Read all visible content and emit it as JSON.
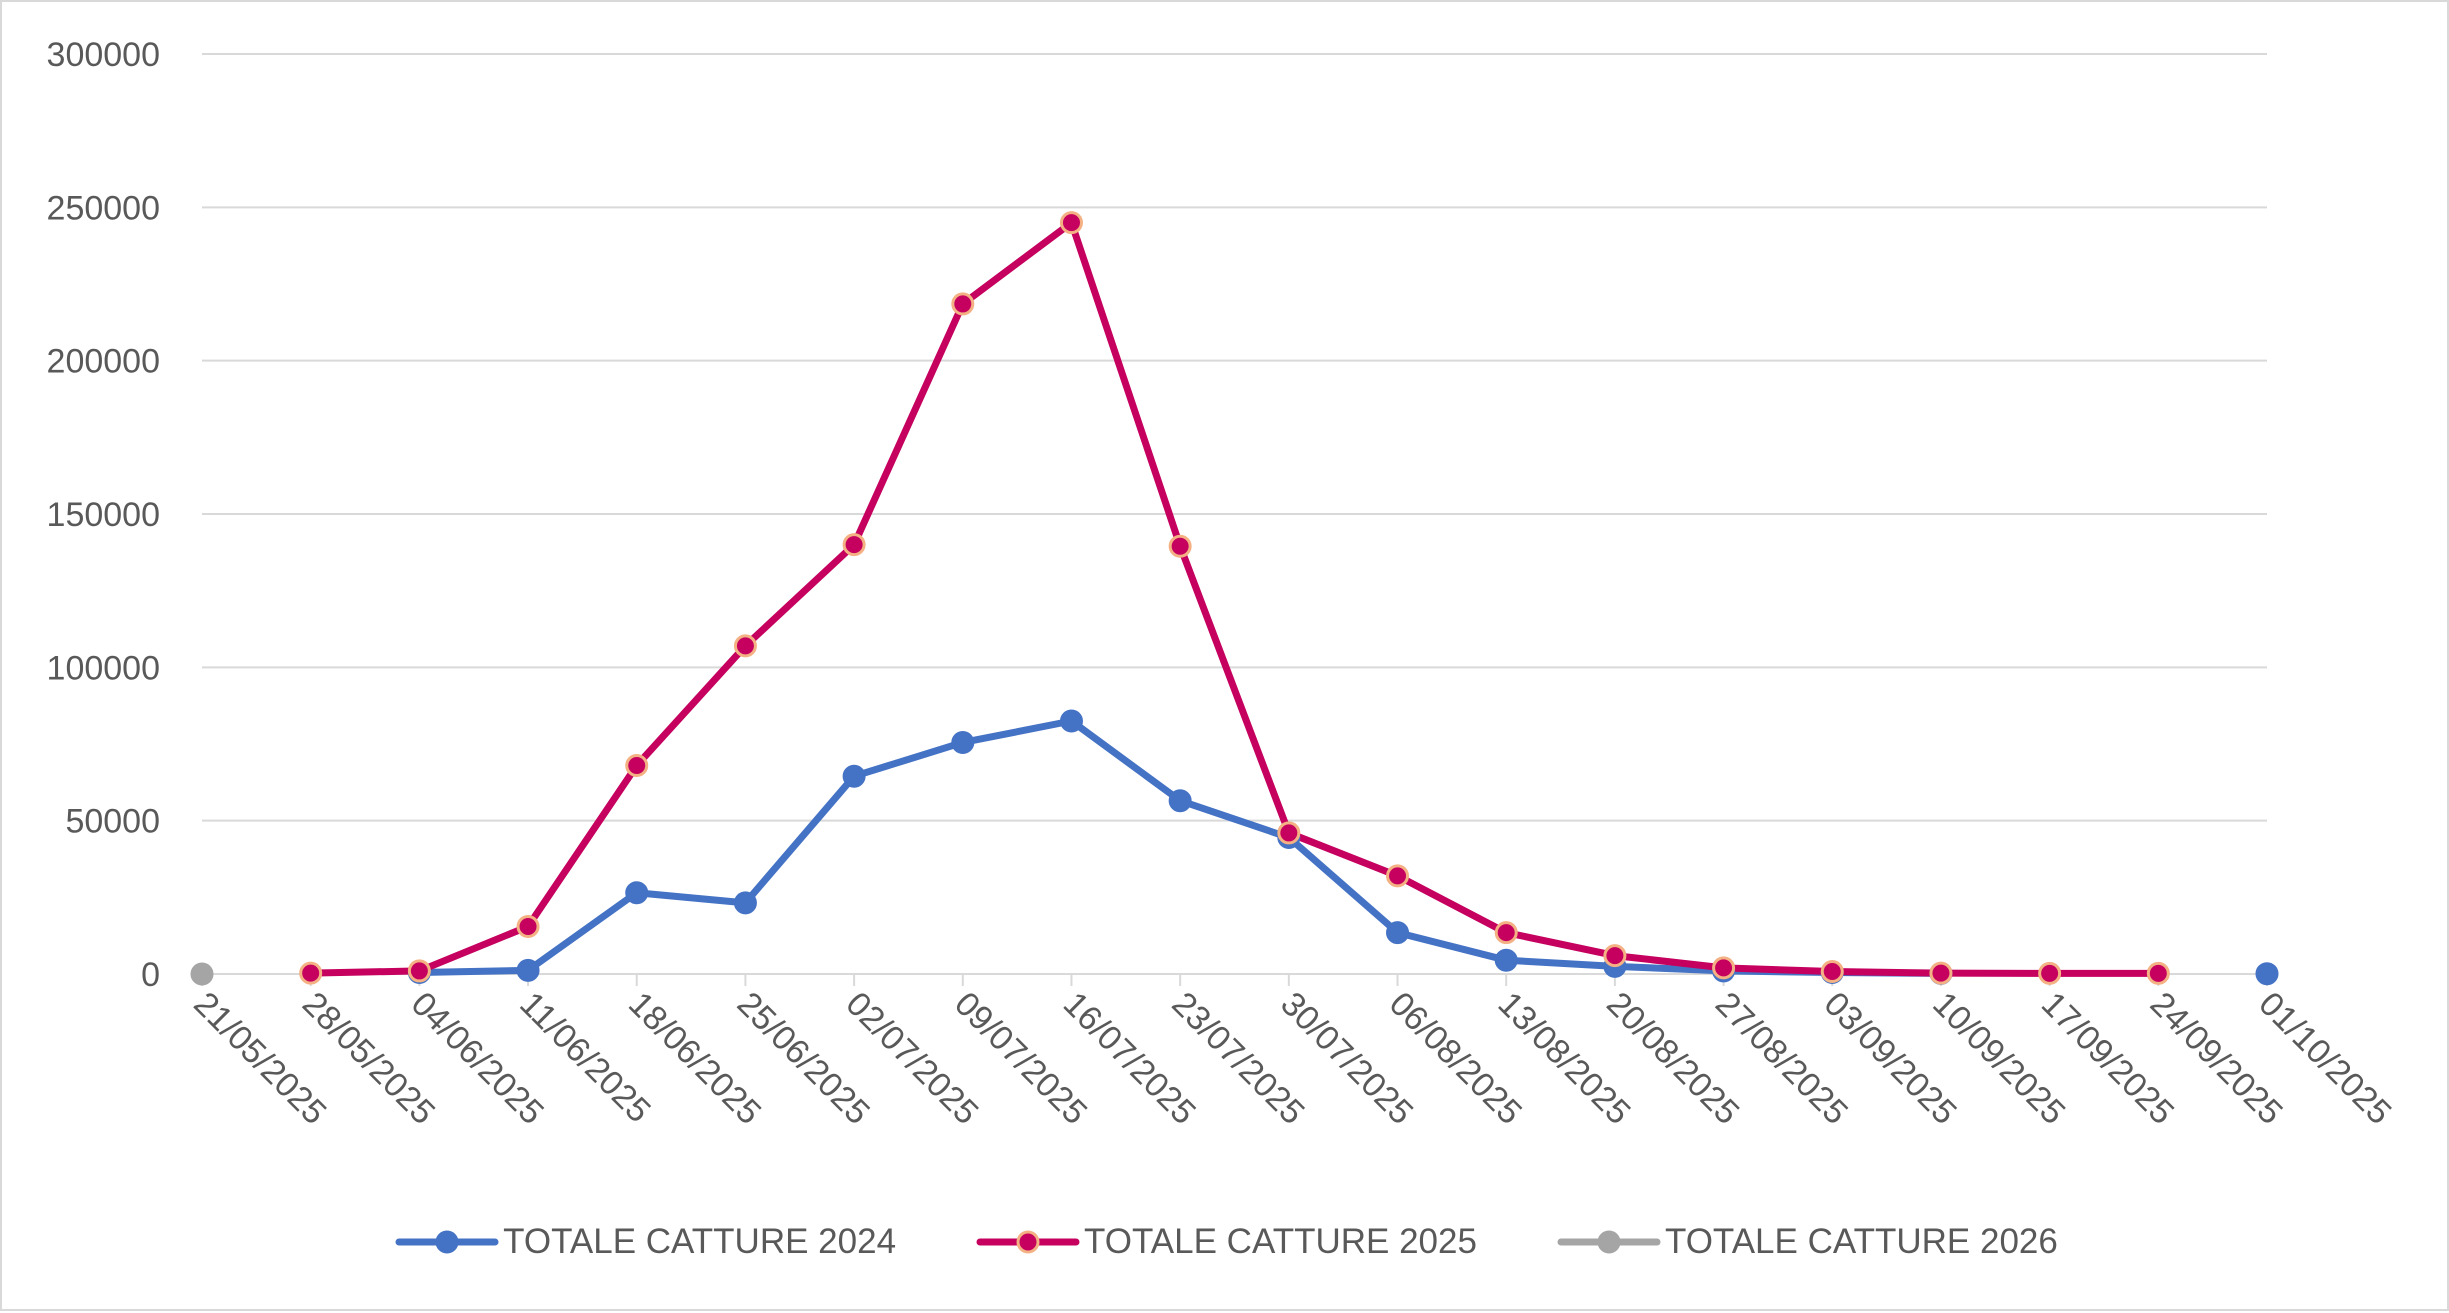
{
  "chart_data": {
    "type": "line",
    "categories": [
      "21/05/2025",
      "28/05/2025",
      "04/06/2025",
      "11/06/2025",
      "18/06/2025",
      "25/06/2025",
      "02/07/2025",
      "09/07/2025",
      "16/07/2025",
      "23/07/2025",
      "30/07/2025",
      "06/08/2025",
      "13/08/2025",
      "20/08/2025",
      "27/08/2025",
      "03/09/2025",
      "10/09/2025",
      "17/09/2025",
      "24/09/2025",
      "01/10/2025"
    ],
    "y_ticks": [
      "0",
      "50000",
      "100000",
      "150000",
      "200000",
      "250000",
      "300000"
    ],
    "ylim": [
      0,
      300000
    ],
    "grid": true,
    "legend_position": "bottom",
    "series": [
      {
        "name": "TOTALE CATTURE 2024",
        "color": "#4472c4",
        "marker_fill": "#4472c4",
        "marker_stroke": "#4472c4",
        "values": [
          null,
          null,
          500,
          1200,
          26500,
          23200,
          64500,
          75500,
          82500,
          56500,
          44500,
          13500,
          4500,
          2500,
          1000,
          500,
          200,
          null,
          null,
          100
        ]
      },
      {
        "name": "TOTALE CATTURE 2025",
        "color": "#c5005e",
        "marker_fill": "#c5005e",
        "marker_stroke": "#f4b183",
        "values": [
          null,
          300,
          1000,
          15500,
          68000,
          107000,
          140000,
          218500,
          245000,
          139500,
          46000,
          32000,
          13500,
          6000,
          2000,
          800,
          300,
          200,
          200,
          null
        ]
      },
      {
        "name": "TOTALE CATTURE 2026",
        "color": "#a5a5a5",
        "marker_fill": "#a5a5a5",
        "marker_stroke": "#a5a5a5",
        "values": [
          0,
          null,
          null,
          null,
          null,
          null,
          null,
          null,
          null,
          null,
          null,
          null,
          null,
          null,
          null,
          null,
          null,
          null,
          null,
          null
        ]
      }
    ]
  }
}
